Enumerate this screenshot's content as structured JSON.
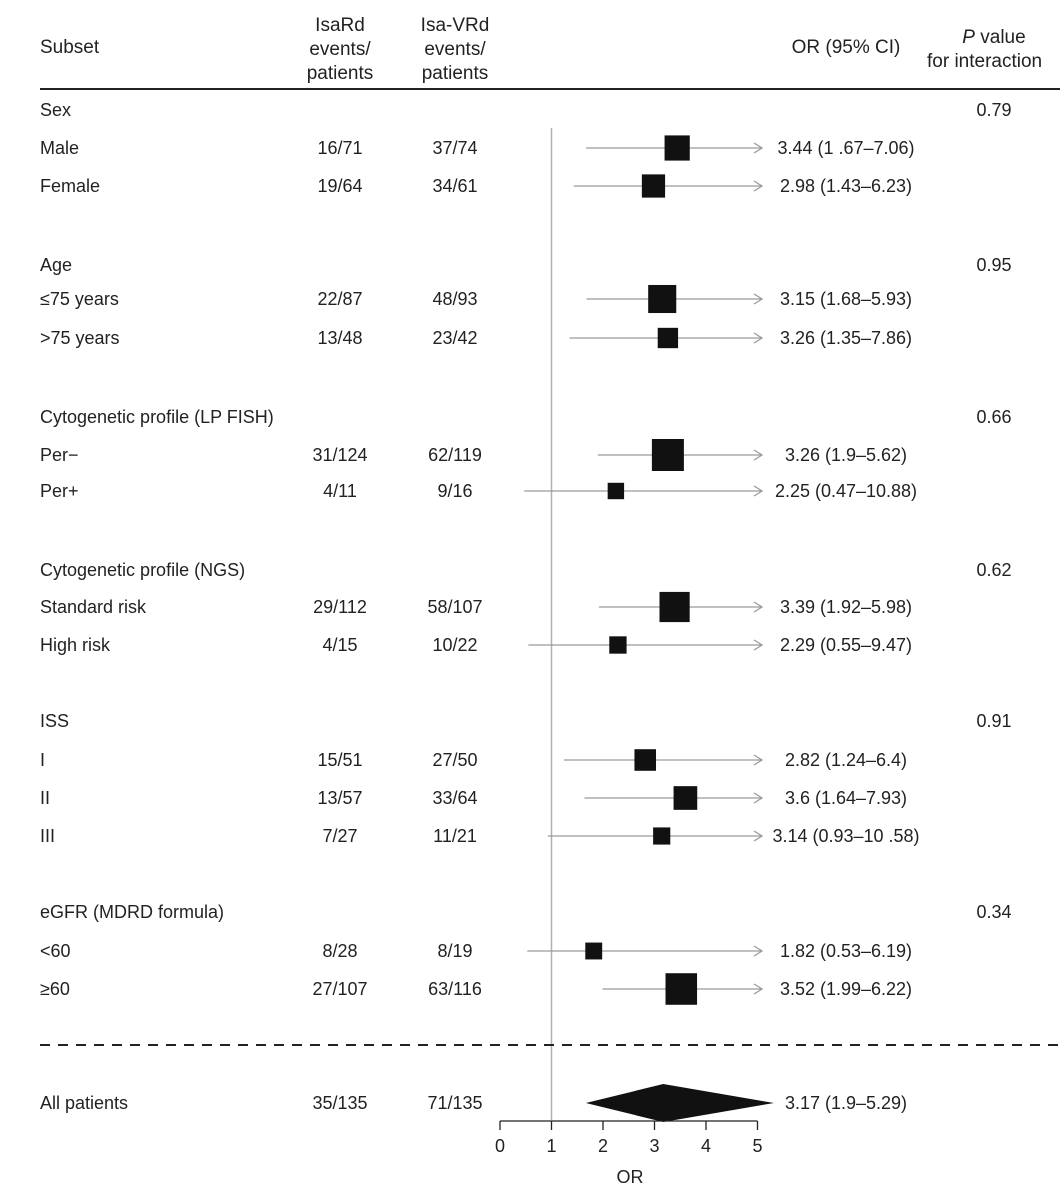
{
  "header": {
    "subset": "Subset",
    "col1": [
      "IsaRd",
      "events/",
      "patients"
    ],
    "col2": [
      "Isa-VRd",
      "events/",
      "patients"
    ],
    "or_ci": "OR (95% CI)",
    "pvalue_p": "P",
    "pvalue_rest1": " value",
    "pvalue_line2": "for interaction"
  },
  "colors": {
    "marker": "#111111",
    "whisker": "#9a9a9a",
    "rule": "#222222",
    "refline": "#b0b0b0"
  },
  "chart_data": {
    "type": "forest",
    "xlabel": "OR",
    "xlim": [
      0,
      5
    ],
    "ticks": [
      0,
      1,
      2,
      3,
      4,
      5
    ],
    "reference_line": 1,
    "groups": [
      {
        "title": "Sex",
        "p": "0.79",
        "rows": [
          {
            "label": "Male",
            "isard": "16/71",
            "isavrd": "37/74",
            "or": 3.44,
            "lo": 1.67,
            "hi": 7.06,
            "text": "3.44 (1 .67–7.06)",
            "weight": 74
          },
          {
            "label": "Female",
            "isard": "19/64",
            "isavrd": "34/61",
            "or": 2.98,
            "lo": 1.43,
            "hi": 6.23,
            "text": "2.98 (1.43–6.23)",
            "weight": 61
          }
        ]
      },
      {
        "title": "Age",
        "p": "0.95",
        "rows": [
          {
            "label": "≤75 years",
            "isard": "22/87",
            "isavrd": "48/93",
            "or": 3.15,
            "lo": 1.68,
            "hi": 5.93,
            "text": "3.15 (1.68–5.93)",
            "weight": 93
          },
          {
            "label": ">75 years",
            "isard": "13/48",
            "isavrd": "23/42",
            "or": 3.26,
            "lo": 1.35,
            "hi": 7.86,
            "text": "3.26 (1.35–7.86)",
            "weight": 42
          }
        ]
      },
      {
        "title": "Cytogenetic profile (LP FISH)",
        "p": "0.66",
        "rows": [
          {
            "label": "Per−",
            "isard": "31/124",
            "isavrd": "62/119",
            "or": 3.26,
            "lo": 1.9,
            "hi": 5.62,
            "text": "3.26 (1.9–5.62)",
            "weight": 119
          },
          {
            "label": "Per+",
            "isard": "4/11",
            "isavrd": "9/16",
            "or": 2.25,
            "lo": 0.47,
            "hi": 10.88,
            "text": "2.25 (0.47–10.88)",
            "weight": 16
          }
        ]
      },
      {
        "title": "Cytogenetic profile (NGS)",
        "p": "0.62",
        "rows": [
          {
            "label": "Standard risk",
            "isard": "29/112",
            "isavrd": "58/107",
            "or": 3.39,
            "lo": 1.92,
            "hi": 5.98,
            "text": "3.39 (1.92–5.98)",
            "weight": 107
          },
          {
            "label": "High risk",
            "isard": "4/15",
            "isavrd": "10/22",
            "or": 2.29,
            "lo": 0.55,
            "hi": 9.47,
            "text": "2.29 (0.55–9.47)",
            "weight": 22
          }
        ]
      },
      {
        "title": "ISS",
        "p": "0.91",
        "rows": [
          {
            "label": "I",
            "isard": "15/51",
            "isavrd": "27/50",
            "or": 2.82,
            "lo": 1.24,
            "hi": 6.4,
            "text": "2.82 (1.24–6.4)",
            "weight": 50
          },
          {
            "label": "II",
            "isard": "13/57",
            "isavrd": "33/64",
            "or": 3.6,
            "lo": 1.64,
            "hi": 7.93,
            "text": "3.6 (1.64–7.93)",
            "weight": 64
          },
          {
            "label": "III",
            "isard": "7/27",
            "isavrd": "11/21",
            "or": 3.14,
            "lo": 0.93,
            "hi": 10.58,
            "text": "3.14 (0.93–10 .58)",
            "weight": 21
          }
        ]
      },
      {
        "title": "eGFR (MDRD formula)",
        "p": "0.34",
        "rows": [
          {
            "label": "<60",
            "isard": "8/28",
            "isavrd": "8/19",
            "or": 1.82,
            "lo": 0.53,
            "hi": 6.19,
            "text": "1.82 (0.53–6.19)",
            "weight": 19
          },
          {
            "label": "≥60",
            "isard": "27/107",
            "isavrd": "63/116",
            "or": 3.52,
            "lo": 1.99,
            "hi": 6.22,
            "text": "3.52 (1.99–6.22)",
            "weight": 116
          }
        ]
      }
    ],
    "overall": {
      "label": "All patients",
      "isard": "35/135",
      "isavrd": "71/135",
      "or": 3.17,
      "lo": 1.9,
      "hi": 5.29,
      "text": "3.17 (1.9–5.29)"
    }
  }
}
